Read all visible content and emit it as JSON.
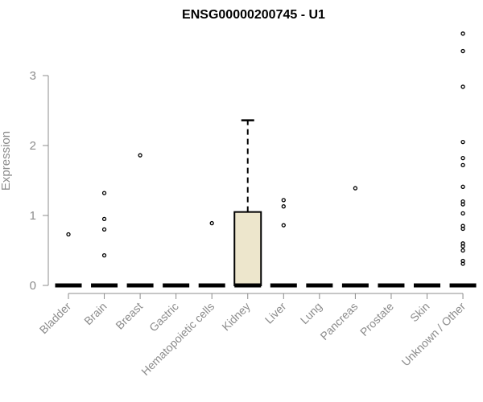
{
  "chart_data": {
    "type": "box",
    "title": "ENSG00000200745 - U1",
    "ylabel": "Expression",
    "xlabel": "",
    "ylim": [
      0,
      3.6
    ],
    "yticks": [
      "0",
      "1",
      "2",
      "3"
    ],
    "grid": false,
    "colors": {
      "box_fill": "#ede6cc",
      "stroke": "#000000",
      "axis": "#8c8c8c"
    },
    "categories": [
      "Bladder",
      "Brain",
      "Breast",
      "Gastric",
      "Hematopoietic cells",
      "Kidney",
      "Liver",
      "Lung",
      "Pancreas",
      "Prostate",
      "Skin",
      "Unknown / Other"
    ],
    "boxes": [
      {
        "q1": 0,
        "median": 0,
        "q3": 0,
        "whisker_low": 0,
        "whisker_high": 0,
        "outliers": [
          0.73
        ]
      },
      {
        "q1": 0,
        "median": 0,
        "q3": 0,
        "whisker_low": 0,
        "whisker_high": 0,
        "outliers": [
          1.32,
          0.95,
          0.8,
          0.43
        ]
      },
      {
        "q1": 0,
        "median": 0,
        "q3": 0,
        "whisker_low": 0,
        "whisker_high": 0,
        "outliers": [
          1.86
        ]
      },
      {
        "q1": 0,
        "median": 0,
        "q3": 0,
        "whisker_low": 0,
        "whisker_high": 0,
        "outliers": []
      },
      {
        "q1": 0,
        "median": 0,
        "q3": 0,
        "whisker_low": 0,
        "whisker_high": 0,
        "outliers": [
          0.89
        ]
      },
      {
        "q1": 0,
        "median": 0,
        "q3": 1.05,
        "whisker_low": 0,
        "whisker_high": 2.36,
        "outliers": []
      },
      {
        "q1": 0,
        "median": 0,
        "q3": 0,
        "whisker_low": 0,
        "whisker_high": 0,
        "outliers": [
          1.22,
          1.13,
          0.86
        ]
      },
      {
        "q1": 0,
        "median": 0,
        "q3": 0,
        "whisker_low": 0,
        "whisker_high": 0,
        "outliers": []
      },
      {
        "q1": 0,
        "median": 0,
        "q3": 0,
        "whisker_low": 0,
        "whisker_high": 0,
        "outliers": [
          1.39
        ]
      },
      {
        "q1": 0,
        "median": 0,
        "q3": 0,
        "whisker_low": 0,
        "whisker_high": 0,
        "outliers": []
      },
      {
        "q1": 0,
        "median": 0,
        "q3": 0,
        "whisker_low": 0,
        "whisker_high": 0,
        "outliers": []
      },
      {
        "q1": 0,
        "median": 0,
        "q3": 0,
        "whisker_low": 0,
        "whisker_high": 0,
        "outliers": [
          3.6,
          3.35,
          2.84,
          2.05,
          1.82,
          1.72,
          1.41,
          1.2,
          1.16,
          1.03,
          0.85,
          0.81,
          0.6,
          0.56,
          0.5,
          0.35,
          0.31
        ]
      }
    ]
  }
}
